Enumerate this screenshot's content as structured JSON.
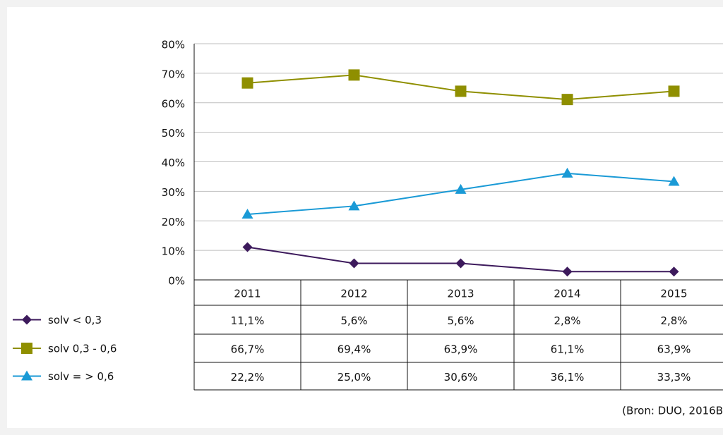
{
  "chart_data": {
    "type": "line",
    "categories": [
      "2011",
      "2012",
      "2013",
      "2014",
      "2015"
    ],
    "series": [
      {
        "name": "solv < 0,3",
        "color": "#3d1a5c",
        "marker": "diamond",
        "values": [
          11.1,
          5.6,
          5.6,
          2.8,
          2.8
        ],
        "value_labels": [
          "11,1%",
          "5,6%",
          "5,6%",
          "2,8%",
          "2,8%"
        ]
      },
      {
        "name": "solv 0,3 - 0,6",
        "color": "#8f8f00",
        "marker": "square",
        "values": [
          66.7,
          69.4,
          63.9,
          61.1,
          63.9
        ],
        "value_labels": [
          "66,7%",
          "69,4%",
          "63,9%",
          "61,1%",
          "63,9%"
        ]
      },
      {
        "name": "solv = > 0,6",
        "color": "#1a9ad6",
        "marker": "triangle",
        "values": [
          22.2,
          25.0,
          30.6,
          36.1,
          33.3
        ],
        "value_labels": [
          "22,2%",
          "25,0%",
          "30,6%",
          "36,1%",
          "33,3%"
        ]
      }
    ],
    "ylim": [
      0,
      80
    ],
    "yticks": [
      {
        "value": 0,
        "label": "0%"
      },
      {
        "value": 10,
        "label": "10%"
      },
      {
        "value": 20,
        "label": "20%"
      },
      {
        "value": 30,
        "label": "30%"
      },
      {
        "value": 40,
        "label": "40%"
      },
      {
        "value": 50,
        "label": "50%"
      },
      {
        "value": 60,
        "label": "60%"
      },
      {
        "value": 70,
        "label": "70%"
      },
      {
        "value": 80,
        "label": "80%"
      }
    ],
    "grid": true,
    "source": "(Bron: DUO, 2016B"
  }
}
